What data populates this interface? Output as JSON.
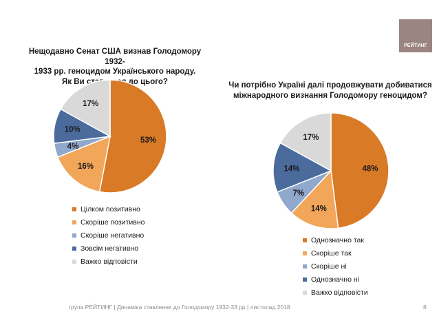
{
  "logo_text": "РЕЙТИНГ",
  "footer_text": "група РЕЙТИНГ  |  Динаміка ставлення до Голодомору 1932-33 рр.| листопад  2018",
  "page_number": "8",
  "chart_data": [
    {
      "type": "pie",
      "title_lines": [
        "Нещодавно Сенат США визнав Голодомору 1932-",
        "1933 рр. геноцидом Українського народу.",
        "Як Ви ставитеся до цього?"
      ],
      "slices": [
        {
          "label": "Цілком позитивно",
          "value": 53,
          "value_label": "53%",
          "color": "#d97a26"
        },
        {
          "label": "Скоріше позитивно",
          "value": 16,
          "value_label": "16%",
          "color": "#f2a65a"
        },
        {
          "label": "Скоріше негативно",
          "value": 4,
          "value_label": "4%",
          "color": "#8fa8cc"
        },
        {
          "label": "Зовсім негативно",
          "value": 10,
          "value_label": "10%",
          "color": "#4a6b9c"
        },
        {
          "label": "Важко відповісти",
          "value": 17,
          "value_label": "17%",
          "color": "#d9d9d9"
        }
      ]
    },
    {
      "type": "pie",
      "title_lines": [
        "Чи потрібно Україні далі продовжувати добиватися",
        "міжнародного визнання Голодомору геноцидом?"
      ],
      "slices": [
        {
          "label": "Однозначно так",
          "value": 48,
          "value_label": "48%",
          "color": "#d97a26"
        },
        {
          "label": "Скоріше так",
          "value": 14,
          "value_label": "14%",
          "color": "#f2a65a"
        },
        {
          "label": "Скоріше ні",
          "value": 7,
          "value_label": "7%",
          "color": "#8fa8cc"
        },
        {
          "label": "Однозначно ні",
          "value": 14,
          "value_label": "14%",
          "color": "#4a6b9c"
        },
        {
          "label": "Важко відповісти",
          "value": 17,
          "value_label": "17%",
          "color": "#d9d9d9"
        }
      ]
    }
  ]
}
